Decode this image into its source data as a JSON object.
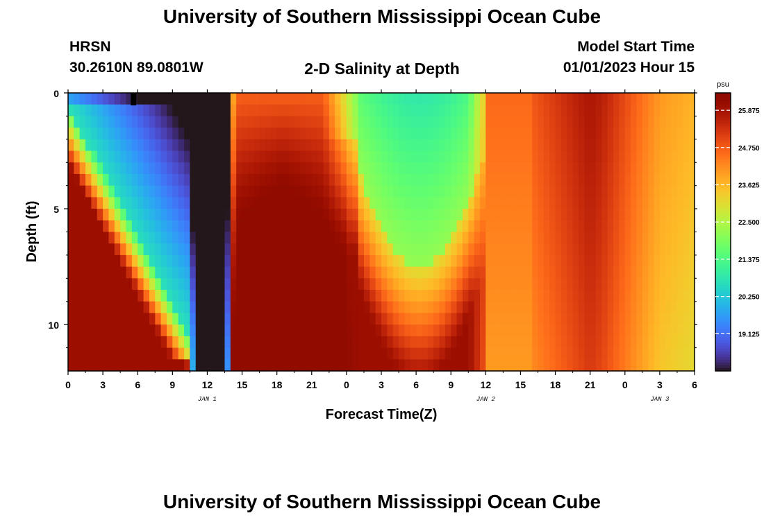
{
  "page": {
    "title": "University of Southern Mississippi Ocean Cube",
    "footer_title": "University of Southern Mississippi Ocean Cube",
    "station": "HRSN",
    "coords": "30.2610N  89.0801W",
    "subtitle": "2-D Salinity at Depth",
    "model_start_label": "Model Start Time",
    "model_start_value": "01/01/2023 Hour 15"
  },
  "chart_data": {
    "type": "heatmap",
    "title": "2-D Salinity at Depth",
    "xlabel": "Forecast Time(Z)",
    "ylabel": "Depth (ft)",
    "x_hours_range": [
      0,
      54
    ],
    "y_depth_range": [
      0,
      12
    ],
    "y_ticks": [
      0,
      5,
      10
    ],
    "x_tick_hours": [
      0,
      3,
      6,
      9,
      12,
      15,
      18,
      21,
      24,
      27,
      30,
      33,
      36,
      39,
      42,
      45,
      48,
      51,
      54
    ],
    "x_tick_labels": [
      "0",
      "3",
      "6",
      "9",
      "12",
      "15",
      "18",
      "21",
      "0",
      "3",
      "6",
      "9",
      "12",
      "15",
      "18",
      "21",
      "0",
      "3",
      "6"
    ],
    "date_labels": [
      {
        "hour": 12,
        "label": "JAN 1"
      },
      {
        "hour": 36,
        "label": "JAN 2"
      },
      {
        "hour": 51,
        "label": "JAN 3"
      }
    ],
    "colorbar": {
      "unit": "psu",
      "range": [
        18.0,
        26.4
      ],
      "ticks": [
        "25.875",
        "24.750",
        "23.625",
        "22.500",
        "21.375",
        "20.250",
        "19.125"
      ],
      "tick_values": [
        25.875,
        24.75,
        23.625,
        22.5,
        21.375,
        20.25,
        19.125
      ],
      "colormap": "turbo"
    },
    "salinity_summary": [
      {
        "hours": "0-13",
        "surface_psu": 18.5,
        "bottom_psu": 26.0,
        "note": "fresh layer deepening from surface"
      },
      {
        "hours": "14-23",
        "surface_psu": 25.0,
        "bottom_psu": 26.3,
        "note": "saline water across column"
      },
      {
        "hours": "24-35",
        "surface_psu": 21.0,
        "bottom_psu": 24.5,
        "note": "second fresh lens near surface"
      },
      {
        "hours": "36-54",
        "surface_psu": 24.5,
        "bottom_psu": 24.2,
        "note": "well mixed, decreasing to ~23.3"
      }
    ]
  }
}
